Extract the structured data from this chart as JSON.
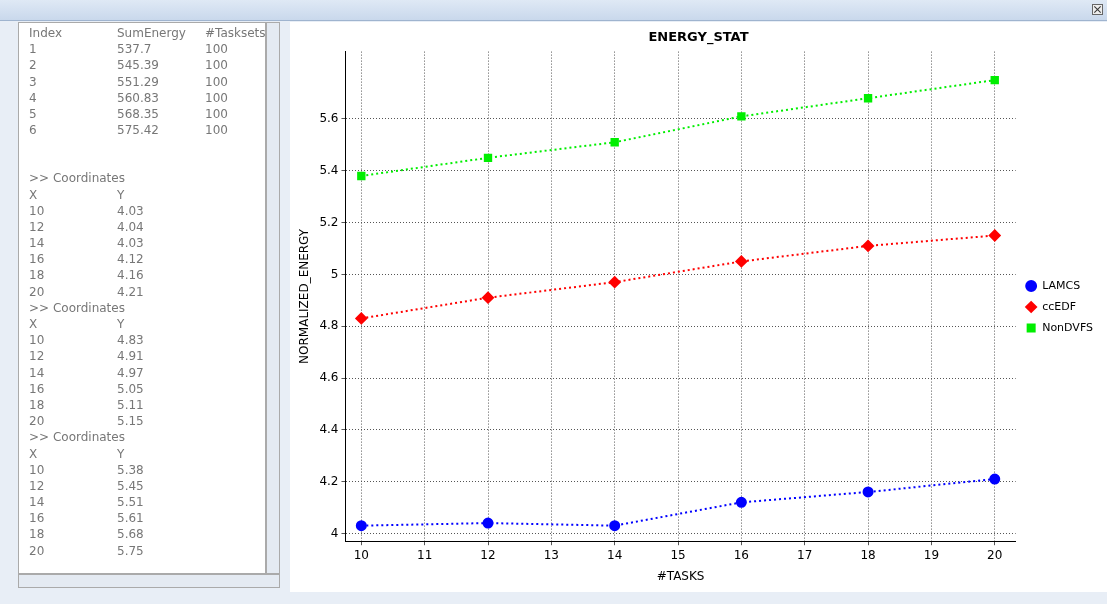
{
  "chart_data": [
    {
      "type": "other",
      "annotations": [
        "Index\tSumEnergy\t#Tasksets",
        "1\t537.7\t100",
        "2\t545.39\t100",
        "3\t551.29\t100",
        "4\t560.83\t100",
        "5\t568.35\t100",
        "6\t575.42\t100",
        ">> Coordinates",
        "X\tY",
        "10\t4.03",
        "12\t4.04",
        "14\t4.03",
        "16\t4.12",
        "18\t4.16",
        "20\t4.21",
        ">> Coordinates",
        "X\tY",
        "10\t4.83",
        "12\t4.91",
        "14\t4.97",
        "16\t5.05",
        "18\t5.11",
        "20\t5.15",
        ">> Coordinates",
        "X\tY",
        "10\t5.38",
        "12\t5.45",
        "14\t5.51",
        "16\t5.61",
        "18\t5.68",
        "20\t5.75"
      ]
    },
    {
      "type": "line",
      "title": "ENERGY_STAT",
      "xlabel": "#TASKS",
      "ylabel": "NORMALIZED_ENERGY",
      "x": [
        10,
        12,
        14,
        16,
        18,
        20
      ],
      "xlim": [
        9.75,
        20.33
      ],
      "xticks": [
        10,
        11,
        12,
        13,
        14,
        15,
        16,
        17,
        18,
        19,
        20
      ],
      "ylim": [
        3.97,
        5.86
      ],
      "yticks": [
        4,
        {
          "value": 4.2,
          "label": "4.2"
        },
        {
          "value": 4.4,
          "label": "4.4"
        },
        {
          "value": 4.6,
          "label": "4.6"
        },
        {
          "value": 4.8,
          "label": "4.8"
        },
        5,
        {
          "value": 5.2,
          "label": "5.2"
        },
        {
          "value": 5.4,
          "label": "5.4"
        },
        {
          "value": 5.6,
          "label": "5.6"
        }
      ],
      "grid": true,
      "legend": "right",
      "line_style": "dotted",
      "series": [
        {
          "name": "LAMCS",
          "color": "#0000ff",
          "marker": "circle",
          "values": [
            4.03,
            4.04,
            4.03,
            4.12,
            4.16,
            4.21
          ]
        },
        {
          "name": "ccEDF",
          "color": "#ff0000",
          "marker": "diamond",
          "values": [
            4.83,
            4.91,
            4.97,
            5.05,
            5.11,
            5.15
          ]
        },
        {
          "name": "NonDVFS",
          "color": "#00ee00",
          "marker": "square",
          "values": [
            5.38,
            5.45,
            5.51,
            5.61,
            5.68,
            5.75
          ]
        }
      ]
    }
  ]
}
